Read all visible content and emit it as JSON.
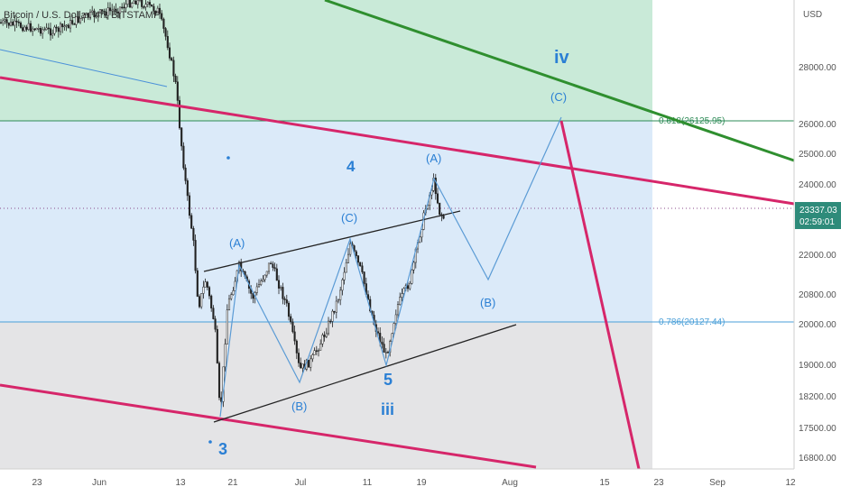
{
  "header": {
    "symbol_line": "Bitcoin / U.S. Dollar, 4h, BITSTAMP"
  },
  "price_axis": {
    "currency": "USD",
    "ticks": [
      "28000.00",
      "26000.00",
      "25000.00",
      "24000.00",
      "22000.00",
      "20800.00",
      "20000.00",
      "19000.00",
      "18200.00",
      "17500.00",
      "16800.00"
    ],
    "last_price": "23337.03",
    "countdown": "02:59:01",
    "last_price_color": "#2e8b7a"
  },
  "time_axis": {
    "ticks": [
      "23",
      "Jun",
      "13",
      "21",
      "Jul",
      "11",
      "19",
      "Aug",
      "15",
      "23",
      "Sep",
      "12"
    ]
  },
  "fib_levels": [
    {
      "label": "0.618(26125.95)",
      "price": 26125.95,
      "color": "#2e8b57"
    },
    {
      "label": "0.786(20127.44)",
      "price": 20127.44,
      "color": "#4a9fd8"
    }
  ],
  "wave_labels": [
    {
      "text": "iv",
      "big": true
    },
    {
      "text": "(C)",
      "big": false
    },
    {
      "text": "4",
      "big": true
    },
    {
      "text": "(A)",
      "big": false
    },
    {
      "text": "(C)",
      "big": false
    },
    {
      "text": "(A)",
      "big": false
    },
    {
      "text": "(B)",
      "big": false
    },
    {
      "text": "(B)",
      "big": false
    },
    {
      "text": "5",
      "big": true
    },
    {
      "text": "iii",
      "big": true
    },
    {
      "text": "3",
      "big": true
    }
  ],
  "colors": {
    "zone_green": "#c9ead8",
    "zone_blue": "#dbeaf9",
    "zone_gray": "#e4e4e6",
    "channel_magenta": "#d6266a",
    "trend_green": "#2f8f2f",
    "path_blue": "#5b9bd5",
    "wedge_black": "#222222",
    "wave_text": "#2a7fd4"
  },
  "chart_data": {
    "type": "candlestick",
    "title": "Bitcoin / U.S. Dollar, 4h, BITSTAMP",
    "y_unit": "USD",
    "price_close_path": [
      [
        "May 22",
        29500
      ],
      [
        "May 27",
        29200
      ],
      [
        "Jun 1",
        30500
      ],
      [
        "Jun 7",
        30800
      ],
      [
        "Jun 10",
        28500
      ],
      [
        "Jun 13",
        22800
      ],
      [
        "Jun 15",
        20800
      ],
      [
        "Jun 17",
        19500
      ],
      [
        "Jun 18",
        17600
      ],
      [
        "Jun 20",
        20900
      ],
      [
        "Jun 24",
        21000
      ],
      [
        "Jun 26",
        21600
      ],
      [
        "Jun 30",
        19100
      ],
      [
        "Jul 2",
        19000
      ],
      [
        "Jul 5",
        20500
      ],
      [
        "Jul 8",
        21900
      ],
      [
        "Jul 11",
        20000
      ],
      [
        "Jul 13",
        19100
      ],
      [
        "Jul 15",
        20600
      ],
      [
        "Jul 18",
        22500
      ],
      [
        "Jul 20",
        24300
      ],
      [
        "Jul 21",
        22900
      ],
      [
        "Jul 22",
        23337
      ]
    ],
    "projected_path": [
      [
        "Jun 18",
        17600
      ],
      [
        "Jun 20",
        21900
      ],
      [
        "Jun 30",
        18900
      ],
      [
        "Jul 8",
        22600
      ],
      [
        "Jul 13",
        19100
      ],
      [
        "Jul 20",
        24400
      ],
      [
        "Jul 30",
        21200
      ],
      [
        "Aug 9",
        26125
      ]
    ],
    "last_price": 23337.03,
    "y_range": [
      16700,
      30000
    ]
  }
}
